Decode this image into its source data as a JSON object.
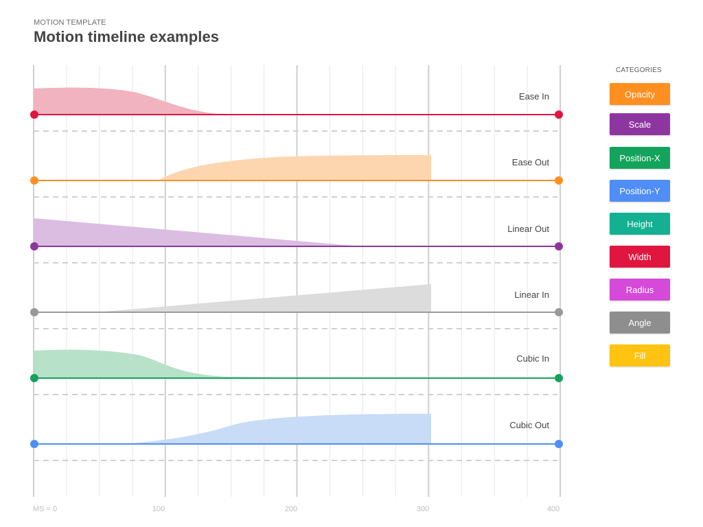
{
  "header": {
    "eyebrow": "MOTION TEMPLATE",
    "title": "Motion timeline examples"
  },
  "timeline": {
    "tracks": [
      {
        "label": "Ease In",
        "color": "#e0163f",
        "fill": "#f0b3bf"
      },
      {
        "label": "Ease Out",
        "color": "#ff8f1f",
        "fill": "#fdd6b0"
      },
      {
        "label": "Linear Out",
        "color": "#8e36a0",
        "fill": "#dbbde2"
      },
      {
        "label": "Linear In",
        "color": "#999999",
        "fill": "#dcdcdc"
      },
      {
        "label": "Cubic In",
        "color": "#14a35c",
        "fill": "#b7e1c8"
      },
      {
        "label": "Cubic Out",
        "color": "#4f8ef5",
        "fill": "#c8dbf7"
      }
    ],
    "axis_labels": [
      "MS = 0",
      "100",
      "200",
      "300",
      "400"
    ]
  },
  "categories": {
    "title": "CATEGORIES",
    "items": [
      {
        "label": "Opacity",
        "color": "#ff8f1f"
      },
      {
        "label": "Scale",
        "color": "#8e36a0"
      },
      {
        "label": "Position-X",
        "color": "#14a35c"
      },
      {
        "label": "Position-Y",
        "color": "#4f8ef5"
      },
      {
        "label": "Height",
        "color": "#13b091"
      },
      {
        "label": "Width",
        "color": "#e0163f"
      },
      {
        "label": "Radius",
        "color": "#d54ad8"
      },
      {
        "label": "Angle",
        "color": "#8e8e8e"
      },
      {
        "label": "Fill",
        "color": "#ffc310"
      }
    ]
  }
}
